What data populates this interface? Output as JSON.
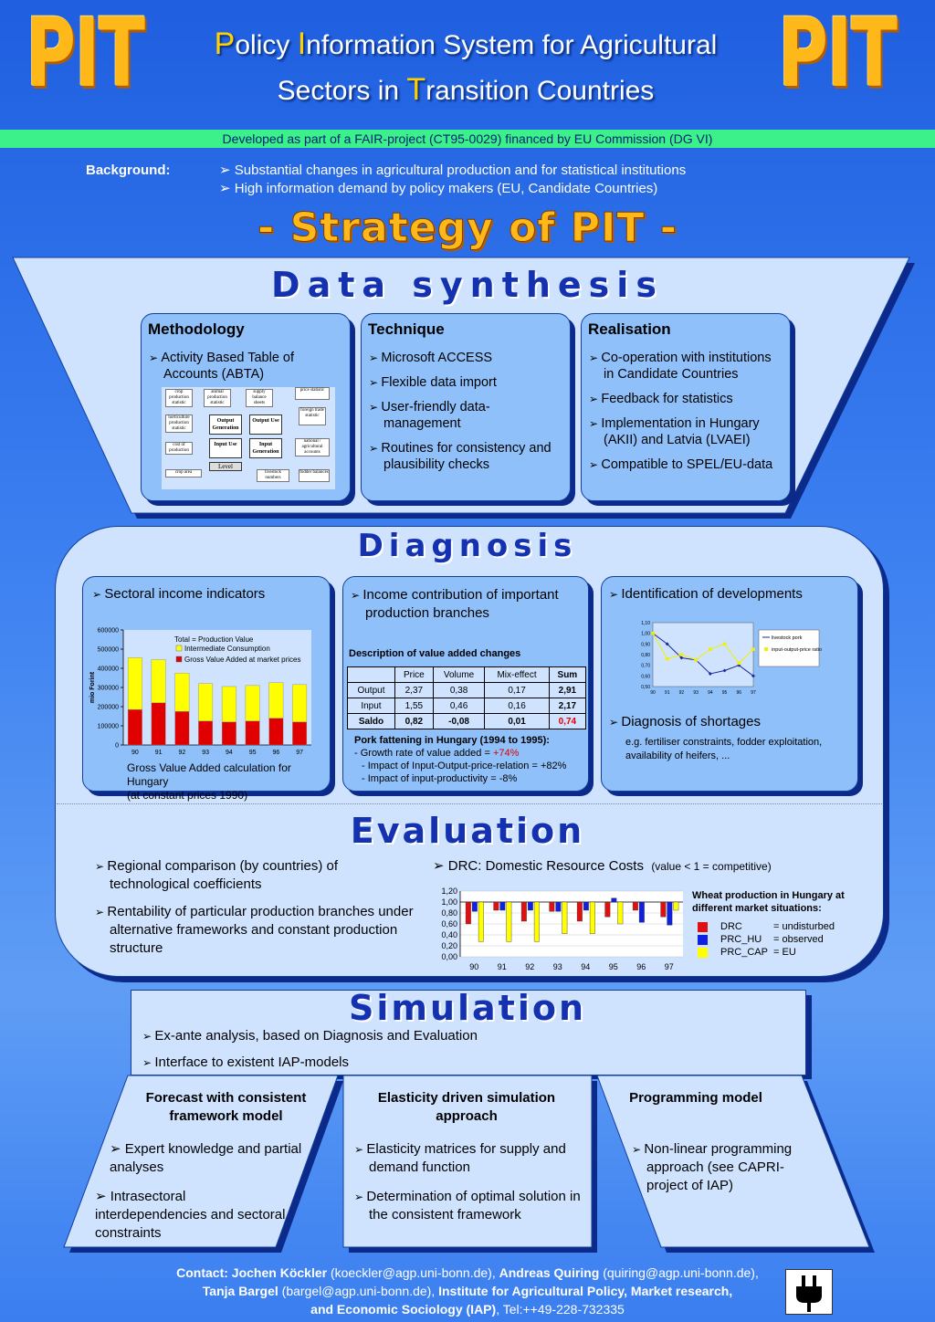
{
  "header": {
    "logo_left": "PIT",
    "logo_right": "PIT",
    "title_line1": [
      {
        "cap": "P",
        "rest": "olicy "
      },
      {
        "cap": "I",
        "rest": "nformation System for Agricultural"
      }
    ],
    "title_line2": [
      {
        "cap": "",
        "rest": "Sectors in "
      },
      {
        "cap": "T",
        "rest": "ransition Countries"
      }
    ],
    "funding": "Developed as part of a FAIR-project (CT95-0029) financed by EU Commission (DG VI)"
  },
  "background": {
    "label": "Background:",
    "items": [
      "Substantial changes in agricultural production and for statistical institutions",
      "High information demand by policy makers (EU, Candidate Countries)"
    ]
  },
  "strategy_title": "- Strategy of PIT -",
  "data_synthesis": {
    "title": "Data synthesis",
    "methodology": {
      "heading": "Methodology",
      "items": [
        "Activity Based Table of Accounts (ABTA)"
      ],
      "diagram": {
        "left": [
          "crop production statistic",
          "horticulture production statistic",
          "cost of production",
          "crop area"
        ],
        "top": [
          "animal production statistic",
          "supply balance sheets"
        ],
        "center": [
          "Output Generation",
          "Output Use",
          "Input Use",
          "Input Generation"
        ],
        "right": [
          "price statistic",
          "foreign trade statistic",
          "national / agricultural accounts",
          "fodder balances"
        ],
        "bottom": [
          "livestock numbers"
        ],
        "level": "Level"
      }
    },
    "technique": {
      "heading": "Technique",
      "items": [
        "Microsoft ACCESS",
        "Flexible data import",
        "User-friendly data-management",
        "Routines for consistency and plausibility checks"
      ]
    },
    "realisation": {
      "heading": "Realisation",
      "items": [
        "Co-operation with institutions in Candidate Countries",
        "Feedback for statistics",
        "Implementation in Hungary (AKII) and Latvia (LVAEI)",
        "Compatible to SPEL/EU-data"
      ]
    }
  },
  "diagnosis": {
    "title": "Diagnosis",
    "panel1": {
      "heading": "Sectoral income indicators",
      "caption_line1": "Gross Value Added calculation for Hungary",
      "caption_line2": "(at constant prices 1990)"
    },
    "panel2": {
      "heading": "Income contribution of important production branches",
      "table_title": "Description of value added changes",
      "table_headers": [
        "",
        "Price",
        "Volume",
        "Mix-effect",
        "Sum"
      ],
      "table_rows": [
        [
          "Output",
          "2,37",
          "0,38",
          "0,17",
          "2,91"
        ],
        [
          "Input",
          "1,55",
          "0,46",
          "0,16",
          "2,17"
        ],
        [
          "Saldo",
          "0,82",
          "-0,08",
          "0,01",
          "0,74"
        ]
      ],
      "pork_title": "Pork fattening in Hungary (1994 to 1995):",
      "pork_line1_prefix": "- Growth rate of value added = ",
      "pork_line1_value": "+74%",
      "pork_line2": "- Impact of Input-Output-price-relation = +82%",
      "pork_line3": "- Impact of input-productivity = -8%"
    },
    "panel3": {
      "heading": "Identification of developments",
      "heading2": "Diagnosis of shortages",
      "note": "e.g. fertiliser constraints, fodder exploitation, availability of heifers, ..."
    }
  },
  "evaluation": {
    "title": "Evaluation",
    "items": [
      "Regional comparison (by countries) of technological coefficients",
      "Rentability of particular production branches under alternative frameworks and constant production structure"
    ],
    "drc_heading": "DRC: Domestic Resource Costs",
    "drc_note": "(value < 1 = competitive)",
    "chart_title_line1": "Wheat production in Hungary at",
    "chart_title_line2": "different market situations:",
    "legend": [
      {
        "name": "DRC",
        "desc": "= undisturbed",
        "color": "#e01010"
      },
      {
        "name": "PRC_HU",
        "desc": "= observed",
        "color": "#1020e0"
      },
      {
        "name": "PRC_CAP",
        "desc": "= EU",
        "color": "#ffff00"
      }
    ]
  },
  "simulation": {
    "title": "Simulation",
    "items": [
      "Ex-ante analysis, based on Diagnosis and Evaluation",
      "Interface to existent IAP-models"
    ],
    "columns": [
      {
        "heading": "Forecast with consistent framework model",
        "items": [
          "Expert knowledge and partial analyses",
          "Intrasectoral interdependencies and sectoral constraints"
        ]
      },
      {
        "heading": "Elasticity driven simulation approach",
        "items": [
          "Elasticity matrices for supply and demand function",
          "Determination of optimal solution in the consistent framework"
        ]
      },
      {
        "heading": "Programming model",
        "items": [
          "Non-linear programming approach (see CAPRI-project of IAP)"
        ]
      }
    ]
  },
  "contact": {
    "line1_label": "Contact: Jochen Köckler",
    "line1_mail": " (koeckler@agp.uni-bonn.de), ",
    "line1_label2": "Andreas Quiring",
    "line1_mail2": " (quiring@agp.uni-bonn.de),",
    "line2_label": "Tanja Bargel",
    "line2_mail": " (bargel@agp.uni-bonn.de),  ",
    "line2_inst": "Institute for Agricultural Policy, Market research,",
    "line3_inst": "and Economic Sociology (IAP)",
    "line3_tel": ", Tel:++49-228-732335"
  },
  "chart_data": [
    {
      "type": "bar",
      "stacked": true,
      "title": "",
      "legend_title": "Total = Production Value",
      "ylabel": "mio Forint",
      "categories": [
        "90",
        "91",
        "92",
        "93",
        "94",
        "95",
        "96",
        "97"
      ],
      "ylim": [
        0,
        600000
      ],
      "yticks": [
        0,
        100000,
        200000,
        300000,
        400000,
        500000,
        600000
      ],
      "series": [
        {
          "name": "Gross Value Added at market prices",
          "color": "#e00000",
          "values": [
            185000,
            220000,
            175000,
            125000,
            120000,
            125000,
            140000,
            120000
          ]
        },
        {
          "name": "Intermediate Consumption",
          "color": "#ffff00",
          "values": [
            270000,
            225000,
            200000,
            195000,
            185000,
            185000,
            185000,
            195000
          ]
        }
      ]
    },
    {
      "type": "line",
      "categories": [
        "90",
        "91",
        "92",
        "93",
        "94",
        "95",
        "96",
        "97"
      ],
      "ylim": [
        0.5,
        1.1
      ],
      "yticks": [
        "0,50",
        "0,60",
        "0,70",
        "0,80",
        "0,90",
        "1,00",
        "1,10"
      ],
      "series": [
        {
          "name": "livestock pork",
          "color": "#1a2aa0",
          "values": [
            1.0,
            0.9,
            0.77,
            0.75,
            0.62,
            0.65,
            0.7,
            0.6
          ]
        },
        {
          "name": "input-output-price ratio",
          "color": "#f0f000",
          "values": [
            1.0,
            0.76,
            0.8,
            0.75,
            0.85,
            0.9,
            0.72,
            0.85
          ]
        }
      ]
    },
    {
      "type": "bar",
      "title": "Wheat production in Hungary at different market situations:",
      "categories": [
        "90",
        "91",
        "92",
        "93",
        "94",
        "95",
        "96",
        "97"
      ],
      "ylim": [
        0,
        1.2
      ],
      "yticks": [
        "0,00",
        "0,20",
        "0,40",
        "0,60",
        "0,80",
        "1,00",
        "1,20"
      ],
      "baseline": 1.0,
      "series": [
        {
          "name": "DRC",
          "color": "#e01010",
          "values": [
            0.6,
            0.85,
            0.65,
            0.83,
            0.65,
            0.73,
            0.85,
            0.73
          ]
        },
        {
          "name": "PRC_HU",
          "color": "#1020e0",
          "values": [
            0.83,
            0.85,
            0.85,
            0.83,
            0.85,
            1.07,
            0.63,
            0.58
          ]
        },
        {
          "name": "PRC_CAP",
          "color": "#ffff00",
          "values": [
            0.28,
            0.28,
            0.28,
            0.42,
            0.42,
            0.6,
            1.0,
            0.85
          ]
        }
      ]
    }
  ]
}
